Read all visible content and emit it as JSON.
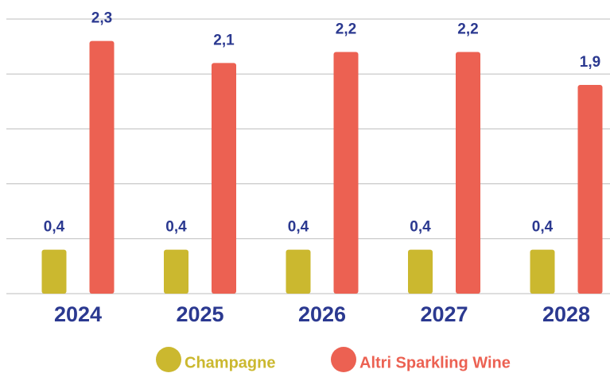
{
  "chart_data": {
    "type": "bar",
    "categories": [
      "2024",
      "2025",
      "2026",
      "2027",
      "2028"
    ],
    "series": [
      {
        "name": "Champagne",
        "color": "#cbb82f",
        "values": [
          0.4,
          0.4,
          0.4,
          0.4,
          0.4
        ],
        "value_labels": [
          "0,4",
          "0,4",
          "0,4",
          "0,4",
          "0,4"
        ]
      },
      {
        "name": "Altri Sparkling Wine",
        "color": "#ec6152",
        "values": [
          2.3,
          2.1,
          2.2,
          2.2,
          1.9
        ],
        "value_labels": [
          "2,3",
          "2,1",
          "2,2",
          "2,2",
          "1,9"
        ]
      }
    ],
    "ylim": [
      0,
      2.5
    ],
    "yticks": [
      0,
      0.5,
      1,
      1.5,
      2,
      2.5
    ],
    "grid": true,
    "legend": "bottom"
  }
}
